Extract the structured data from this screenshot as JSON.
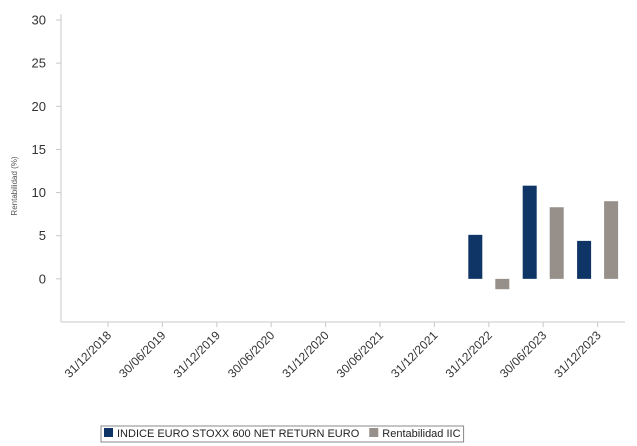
{
  "chart_data": {
    "type": "bar",
    "title": "",
    "xlabel": "",
    "ylabel": "Rentabilidad (%)",
    "ylim": [
      -5,
      30
    ],
    "yticks": [
      0,
      5,
      10,
      15,
      20,
      25,
      30
    ],
    "grid": false,
    "legend_position": "bottom",
    "categories": [
      "31/12/2018",
      "30/06/2019",
      "31/12/2019",
      "30/06/2020",
      "31/12/2020",
      "30/06/2021",
      "31/12/2021",
      "31/12/2022",
      "30/06/2023",
      "31/12/2023"
    ],
    "series": [
      {
        "name": "INDICE EURO STOXX 600 NET RETURN EURO",
        "color": "#0f3566",
        "values": [
          null,
          null,
          null,
          null,
          null,
          null,
          null,
          5.1,
          10.8,
          4.4
        ]
      },
      {
        "name": "Rentabilidad IIC",
        "color": "#978f89",
        "values": [
          null,
          null,
          null,
          null,
          null,
          null,
          null,
          -1.2,
          8.3,
          9.0
        ]
      }
    ]
  }
}
